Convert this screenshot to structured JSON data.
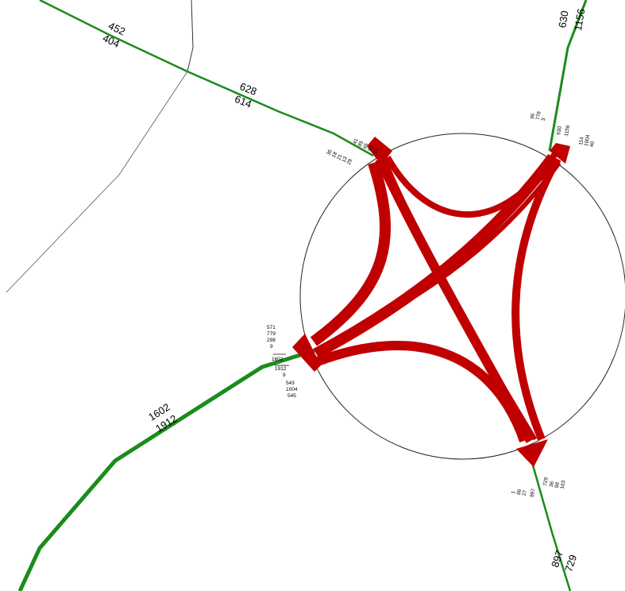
{
  "roads": {
    "northwest": {
      "top": "452",
      "bottom": "404"
    },
    "northwest_mid": {
      "top": "628",
      "bottom": "614"
    },
    "north": {
      "left": "630",
      "right": "1156"
    },
    "southwest": {
      "top": "1602",
      "bottom": "1912"
    },
    "south": {
      "left": "897",
      "right": "729"
    }
  },
  "node_labels": {
    "northwest_a": [
      "36",
      "18",
      "21",
      "13",
      "29"
    ],
    "northwest_b": [
      "41",
      "85",
      "65",
      "52",
      "19"
    ],
    "north_a": [
      "95",
      "778",
      "3"
    ],
    "north_b": [
      "630",
      "1156"
    ],
    "north_c": [
      "114",
      "1004",
      "40"
    ],
    "west_a": [
      "571",
      "779",
      "298",
      "9",
      "1602"
    ],
    "west_b": [
      "1912",
      "9",
      "543",
      "1004",
      "545"
    ],
    "south_a": [
      "1",
      "86",
      "27",
      "897"
    ],
    "south_b": [
      "729",
      "36",
      "98",
      "163"
    ]
  },
  "colors": {
    "road": "#1a8c1a",
    "flow": "#c00000",
    "thin_line": "#333333"
  }
}
